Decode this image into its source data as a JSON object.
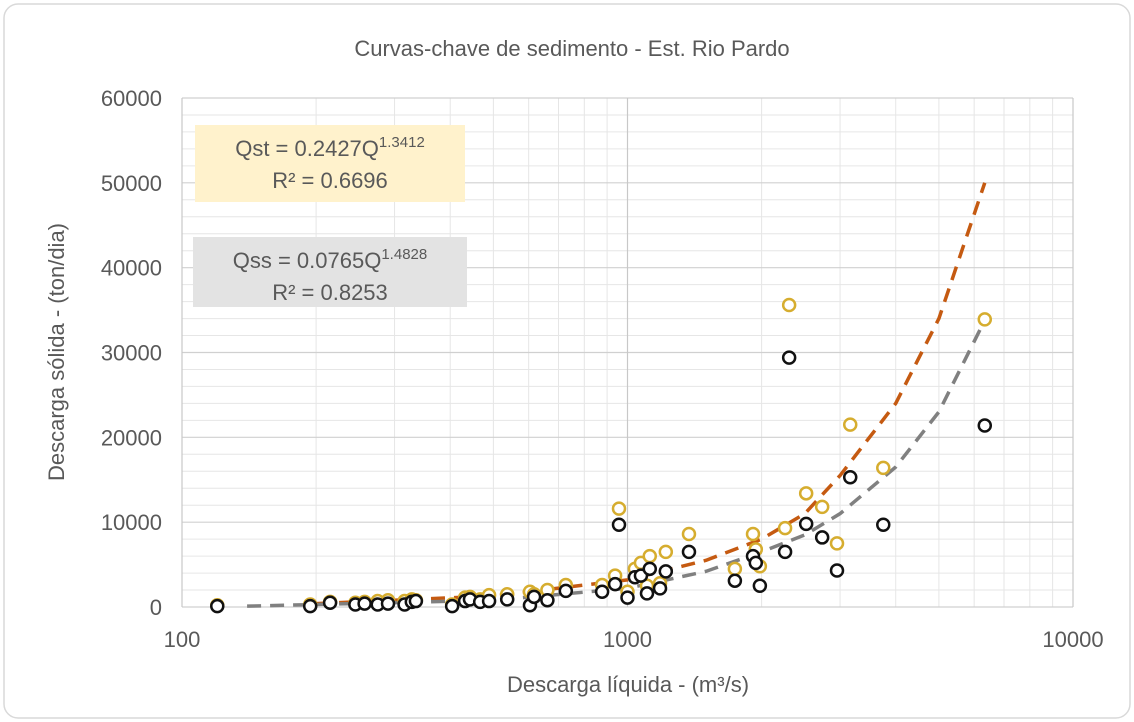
{
  "chart_data": {
    "type": "scatter",
    "title": "Curvas-chave de sedimento - Est. Rio Pardo",
    "xlabel": "Descarga líquida - (m³/s)",
    "ylabel": "Descarga sólida - (ton/dia)",
    "xscale": "log",
    "xlim": [
      100,
      10000
    ],
    "xticks": [
      100,
      1000,
      10000
    ],
    "ylim": [
      0,
      60000
    ],
    "yticks": [
      0,
      10000,
      20000,
      30000,
      40000,
      50000,
      60000
    ],
    "grid": true,
    "minor_grid": true,
    "x": [
      120,
      194,
      215,
      245,
      257,
      275,
      290,
      316,
      328,
      335,
      404,
      432,
      443,
      467,
      489,
      537,
      604,
      617,
      661,
      727,
      877,
      938,
      957,
      1000,
      1039,
      1072,
      1106,
      1122,
      1183,
      1219,
      1374,
      1742,
      1913,
      1941,
      1982,
      2258,
      2306,
      2518,
      2735,
      2953,
      3162,
      3751,
      6338
    ],
    "series": [
      {
        "color": "#d6ad2f",
        "values": [
          200,
          300,
          600,
          500,
          600,
          700,
          800,
          700,
          900,
          800,
          300,
          1100,
          1200,
          900,
          1400,
          1500,
          1800,
          1500,
          2000,
          2600,
          2600,
          3700,
          11600,
          1800,
          4500,
          5200,
          2500,
          6000,
          2800,
          6500,
          8600,
          4500,
          8600,
          6800,
          4800,
          9300,
          35600,
          13400,
          11800,
          7500,
          21500,
          16400,
          33900
        ]
      },
      {
        "color": "#111111",
        "values": [
          100,
          100,
          500,
          300,
          400,
          300,
          400,
          300,
          600,
          700,
          100,
          700,
          900,
          600,
          700,
          900,
          200,
          1200,
          800,
          1900,
          1800,
          2700,
          9700,
          1100,
          3500,
          3700,
          1600,
          4500,
          2200,
          4200,
          6500,
          3100,
          6000,
          5200,
          2500,
          6500,
          29400,
          9800,
          8200,
          4300,
          15300,
          9700,
          21400
        ]
      }
    ],
    "trendlines": [
      {
        "color": "#c55a11",
        "x": [
          200,
          500,
          1000,
          1500,
          2000,
          2500,
          3000,
          4000,
          5000,
          6338
        ],
        "values": [
          400,
          1300,
          3200,
          5500,
          8000,
          11000,
          15500,
          24000,
          34000,
          50000
        ]
      },
      {
        "color": "#808080",
        "x": [
          140,
          500,
          1000,
          1500,
          2000,
          2500,
          3000,
          4000,
          5000,
          6338
        ],
        "values": [
          100,
          800,
          2200,
          4200,
          6500,
          8500,
          11000,
          16500,
          23000,
          33800
        ]
      }
    ],
    "annotations": [
      {
        "text": "Qst = 0.2427Q",
        "sup": "1.3412",
        "r2": "R² = 0.6696",
        "background": "#fff2cc"
      },
      {
        "text": "Qss = 0.0765Q",
        "sup": "1.4828",
        "r2": "R² = 0.8253",
        "background": "#e3e3e3"
      }
    ]
  }
}
